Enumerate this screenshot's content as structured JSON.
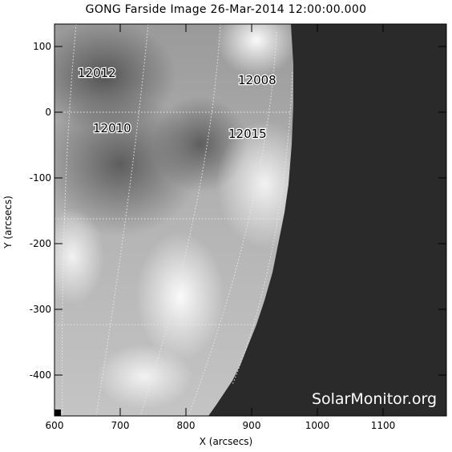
{
  "title": "GONG Farside Image 26-Mar-2014 12:00:00.000",
  "axes": {
    "xlabel": "X (arcsecs)",
    "ylabel": "Y (arcsecs)",
    "xticks": [
      "600",
      "700",
      "800",
      "900",
      "1000",
      "1100"
    ],
    "yticks": [
      "100",
      "0",
      "-100",
      "-200",
      "-300",
      "-400"
    ]
  },
  "regions": [
    {
      "label": "12012",
      "x": 650,
      "y": 60
    },
    {
      "label": "12008",
      "x": 910,
      "y": 50
    },
    {
      "label": "12010",
      "x": 690,
      "y": -20
    },
    {
      "label": "12015",
      "x": 890,
      "y": -30
    }
  ],
  "watermark": "SolarMonitor.org",
  "colors": {
    "background": "#ffffff",
    "space": "#2a2a2a",
    "grid": "#e8e8e8"
  }
}
